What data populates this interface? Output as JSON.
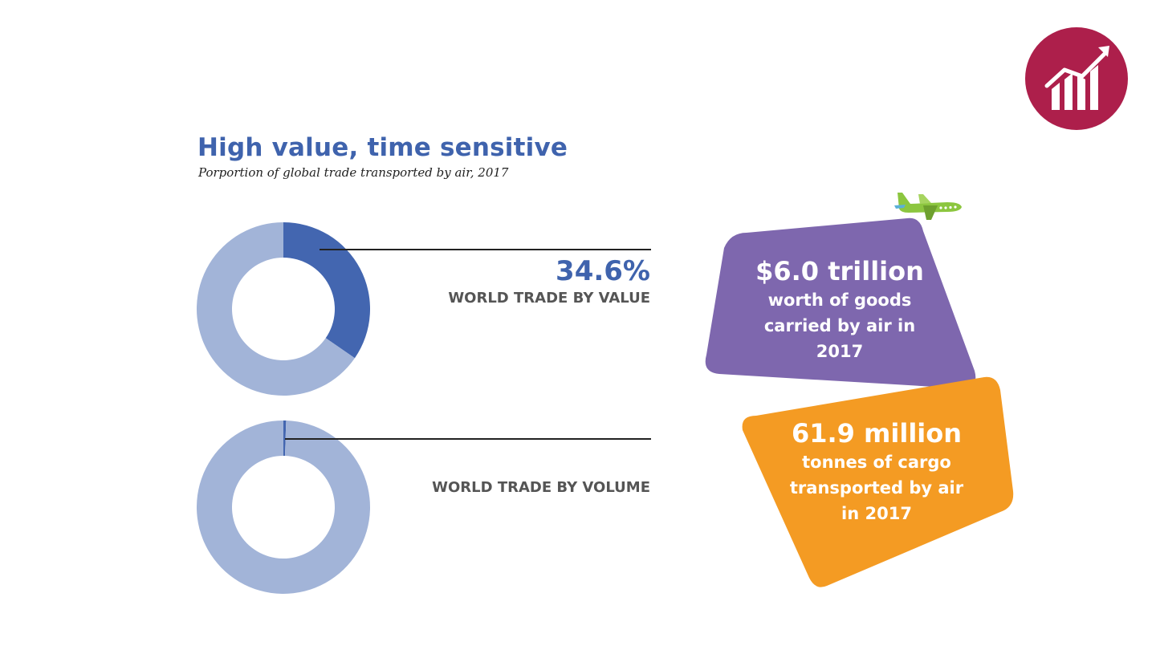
{
  "header": {
    "title": "High value, time sensitive",
    "subtitle": "Porportion of global trade transported by air, 2017"
  },
  "chart_data": [
    {
      "type": "pie",
      "donut": true,
      "label": "WORLD TRADE BY VALUE",
      "data_label": "34.6%",
      "values": [
        34.6,
        65.4
      ],
      "colors": [
        "#4366b0",
        "#a2b4d8"
      ]
    },
    {
      "type": "pie",
      "donut": true,
      "label": "WORLD TRADE BY VOLUME",
      "values": [
        0.5,
        99.5
      ],
      "colors": [
        "#4366b0",
        "#a2b4d8"
      ]
    }
  ],
  "callouts": [
    {
      "headline": "$6.0 trillion",
      "lines": [
        "worth of goods",
        "carried by air in",
        "2017"
      ],
      "color": "#7e67ae"
    },
    {
      "headline": "61.9 million",
      "lines": [
        "tonnes of cargo",
        "transported by air",
        "in 2017"
      ],
      "color": "#f49b23"
    }
  ],
  "icons": {
    "corner": "trend-chart-icon",
    "corner_color": "#ad1f4b",
    "plane": "airplane-icon",
    "plane_color": "#8cc63f"
  }
}
